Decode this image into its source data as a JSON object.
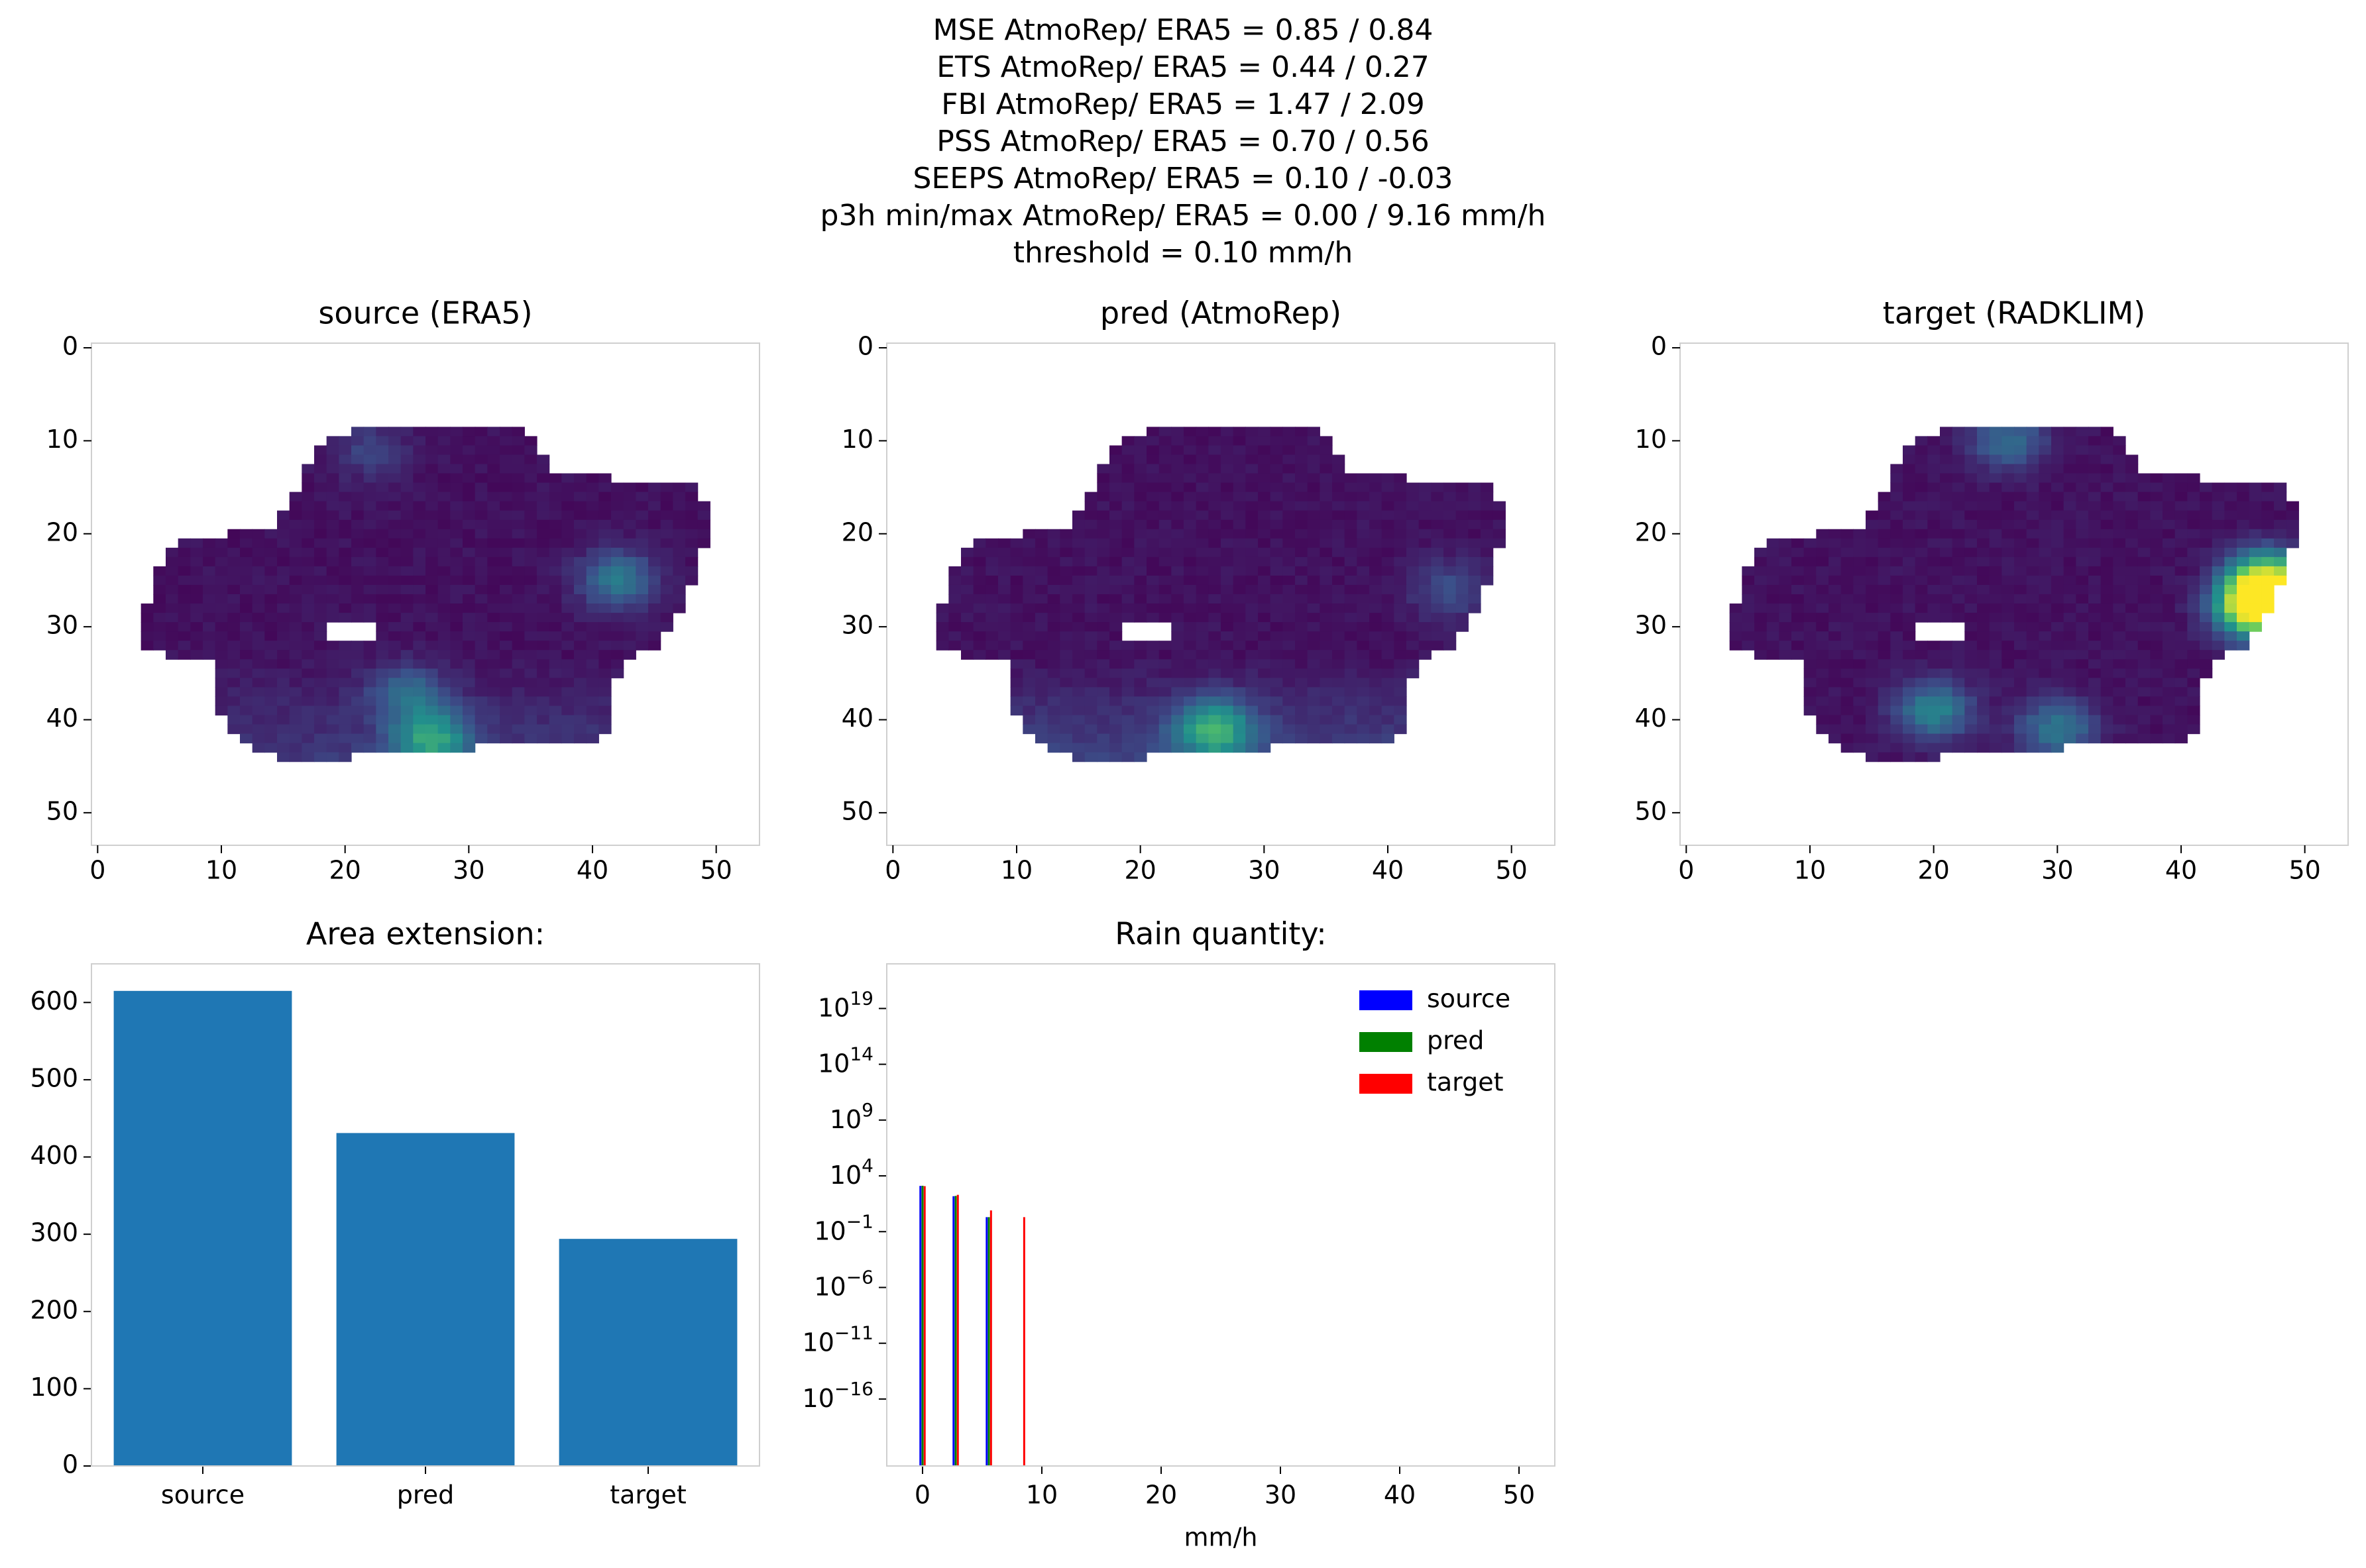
{
  "figure": {
    "title_lines": [
      "MSE AtmoRep/ ERA5 = 0.85 / 0.84",
      "ETS AtmoRep/ ERA5 = 0.44 / 0.27",
      "FBI AtmoRep/ ERA5 = 1.47 / 2.09",
      "PSS AtmoRep/ ERA5 = 0.70 / 0.56",
      "SEEPS AtmoRep/ ERA5 = 0.10 / -0.03",
      "p3h min/max AtmoRep/ ERA5 = 0.00 / 9.16 mm/h",
      "threshold = 0.10 mm/h"
    ]
  },
  "colors": {
    "viridis_low": "#440154",
    "viridis_mid": "#21918c",
    "viridis_high": "#fde725",
    "bar": "#1f77b4",
    "source": "#0000ff",
    "pred": "#008000",
    "target": "#ff0000",
    "frame": "#cfcfcf"
  },
  "chart_data": [
    {
      "type": "heatmap",
      "title": "source (ERA5)",
      "xticks": [
        "0",
        "10",
        "20",
        "30",
        "40",
        "50"
      ],
      "yticks": [
        "0",
        "10",
        "20",
        "30",
        "40",
        "50"
      ],
      "xlim": [
        -0.5,
        53.5
      ],
      "ylim": [
        53.5,
        -0.5
      ],
      "colormap": "viridis",
      "region": "irregular masked domain, rows 9-44, cols 4-49",
      "hotspots": [
        {
          "x": 42,
          "y": 25,
          "intensity": 0.35
        },
        {
          "x": 25,
          "y": 37,
          "intensity": 0.25
        },
        {
          "x": 27,
          "y": 42,
          "intensity": 0.45
        },
        {
          "x": 22,
          "y": 11,
          "intensity": 0.15
        }
      ]
    },
    {
      "type": "heatmap",
      "title": "pred (AtmoRep)",
      "xticks": [
        "0",
        "10",
        "20",
        "30",
        "40",
        "50"
      ],
      "yticks": [
        "0",
        "10",
        "20",
        "30",
        "40",
        "50"
      ],
      "xlim": [
        -0.5,
        53.5
      ],
      "ylim": [
        53.5,
        -0.5
      ],
      "colormap": "viridis",
      "region": "irregular masked domain, rows 9-44, cols 4-49",
      "hotspots": [
        {
          "x": 26,
          "y": 41,
          "intensity": 0.5
        },
        {
          "x": 45,
          "y": 26,
          "intensity": 0.2
        }
      ]
    },
    {
      "type": "heatmap",
      "title": "target (RADKLIM)",
      "xticks": [
        "0",
        "10",
        "20",
        "30",
        "40",
        "50"
      ],
      "yticks": [
        "0",
        "10",
        "20",
        "30",
        "40",
        "50"
      ],
      "xlim": [
        -0.5,
        53.5
      ],
      "ylim": [
        53.5,
        -0.5
      ],
      "colormap": "viridis",
      "region": "irregular masked domain, rows 9-44, cols 4-49",
      "hotspots": [
        {
          "x": 47,
          "y": 25,
          "intensity": 0.8
        },
        {
          "x": 46,
          "y": 28,
          "intensity": 1.0
        },
        {
          "x": 20,
          "y": 39,
          "intensity": 0.4
        },
        {
          "x": 30,
          "y": 41,
          "intensity": 0.35
        },
        {
          "x": 26,
          "y": 10,
          "intensity": 0.3
        }
      ]
    },
    {
      "type": "bar",
      "title": "Area extension:",
      "categories": [
        "source",
        "pred",
        "target"
      ],
      "values": [
        615,
        431,
        294
      ],
      "ylim": [
        0,
        650
      ],
      "yticks": [
        "0",
        "100",
        "200",
        "300",
        "400",
        "500",
        "600"
      ]
    },
    {
      "type": "bar",
      "title": "Rain quantity:",
      "xlabel": "mm/h",
      "yscale": "log",
      "xlim": [
        -3,
        53
      ],
      "ylim_exp": [
        -22,
        23
      ],
      "xticks": [
        "0",
        "10",
        "20",
        "30",
        "40",
        "50"
      ],
      "ytick_exps": [
        -16,
        -11,
        -6,
        -1,
        4,
        9,
        14,
        19
      ],
      "legend_position": "top-right",
      "series": [
        {
          "name": "source",
          "bins": [
            0,
            2.78,
            5.56
          ],
          "values": [
            1260,
            150,
            2
          ]
        },
        {
          "name": "pred",
          "bins": [
            0,
            2.78,
            5.56
          ],
          "values": [
            1300,
            160,
            2
          ]
        },
        {
          "name": "target",
          "bins": [
            0,
            2.78,
            5.56,
            8.34
          ],
          "values": [
            1200,
            200,
            8,
            2
          ]
        }
      ]
    }
  ]
}
